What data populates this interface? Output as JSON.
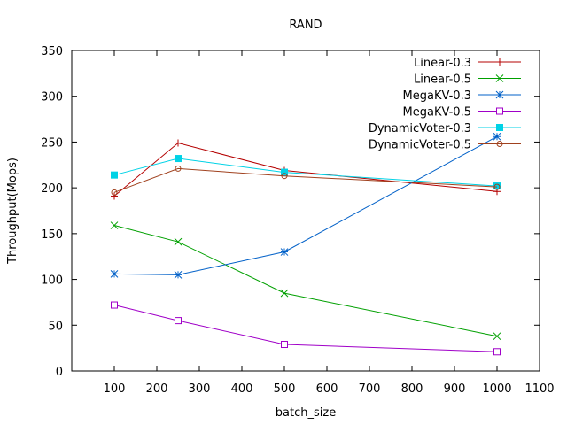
{
  "chart_data": {
    "type": "line",
    "title": "RAND",
    "xlabel": "batch_size",
    "ylabel": "Throughput(Mops)",
    "xlim": [
      0,
      1100
    ],
    "ylim": [
      0,
      350
    ],
    "xticks": [
      100,
      200,
      300,
      400,
      500,
      600,
      700,
      800,
      900,
      1000,
      1100
    ],
    "yticks": [
      0,
      50,
      100,
      150,
      200,
      250,
      300,
      350
    ],
    "grid": false,
    "legend_position": "top-right",
    "series": [
      {
        "name": "Linear-0.3",
        "color": "#b40000",
        "marker": "plus",
        "x": [
          100,
          250,
          500,
          1000
        ],
        "y": [
          191,
          249,
          219,
          196
        ]
      },
      {
        "name": "Linear-0.5",
        "color": "#00a000",
        "marker": "cross",
        "x": [
          100,
          250,
          500,
          1000
        ],
        "y": [
          159,
          141,
          85,
          38
        ]
      },
      {
        "name": "MegaKV-0.3",
        "color": "#0060c8",
        "marker": "star",
        "x": [
          100,
          250,
          500,
          1000
        ],
        "y": [
          106,
          105,
          130,
          256
        ]
      },
      {
        "name": "MegaKV-0.5",
        "color": "#a000c8",
        "marker": "square-open",
        "x": [
          100,
          250,
          500,
          1000
        ],
        "y": [
          72,
          55,
          29,
          21
        ]
      },
      {
        "name": "DynamicVoter-0.3",
        "color": "#00d2e6",
        "marker": "square-filled",
        "x": [
          100,
          250,
          500,
          1000
        ],
        "y": [
          214,
          232,
          217,
          202
        ]
      },
      {
        "name": "DynamicVoter-0.5",
        "color": "#a0411e",
        "marker": "circle-open",
        "x": [
          100,
          250,
          500,
          1000
        ],
        "y": [
          195,
          221,
          213,
          201
        ]
      }
    ]
  }
}
